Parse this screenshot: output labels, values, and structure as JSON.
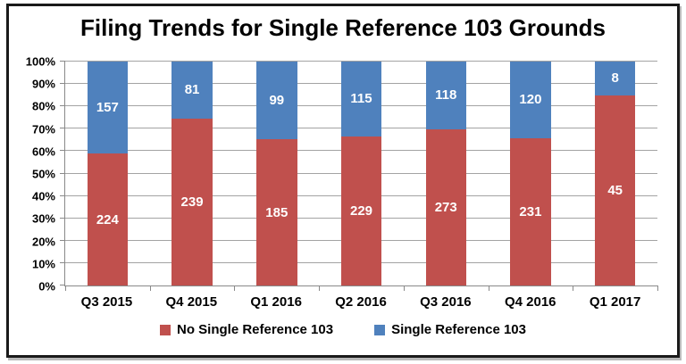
{
  "chart_data": {
    "type": "bar",
    "subtype": "stacked-100-percent",
    "title": "Filing Trends for Single Reference 103 Grounds",
    "categories": [
      "Q3 2015",
      "Q4 2015",
      "Q1 2016",
      "Q2 2016",
      "Q3 2016",
      "Q4 2016",
      "Q1 2017"
    ],
    "series": [
      {
        "name": "No Single Reference 103",
        "color": "#C0504D",
        "values": [
          224,
          239,
          185,
          229,
          273,
          231,
          45
        ]
      },
      {
        "name": "Single Reference 103",
        "color": "#4F81BD",
        "values": [
          157,
          81,
          99,
          115,
          118,
          120,
          8
        ]
      }
    ],
    "xlabel": "",
    "ylabel": "",
    "y_axis": {
      "min": 0,
      "max": 100,
      "tick_step": 10,
      "tick_labels": [
        "0%",
        "10%",
        "20%",
        "30%",
        "40%",
        "50%",
        "60%",
        "70%",
        "80%",
        "90%",
        "100%"
      ],
      "grid": true
    },
    "value_labels": "inside-center",
    "legend_position": "bottom"
  },
  "colors": {
    "grid": "#A3A3A3",
    "axis": "#898989",
    "frame_border": "#1A1A1A",
    "value_label_text": "#FFFFFF",
    "text": "#000000",
    "background": "#FFFFFF"
  }
}
